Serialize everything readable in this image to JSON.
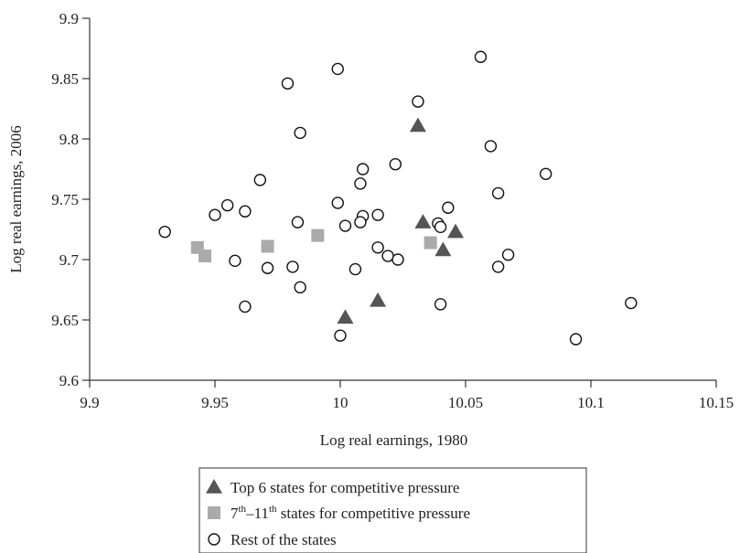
{
  "chart_data": {
    "type": "scatter",
    "title": "",
    "xlabel": "Log real earnings, 1980",
    "ylabel": "Log real earnings, 2006",
    "xlim": [
      9.9,
      10.15
    ],
    "ylim": [
      9.6,
      9.9
    ],
    "xticks": [
      "9.9",
      "9.95",
      "10",
      "10.05",
      "10.1",
      "10.15"
    ],
    "yticks": [
      "9.6",
      "9.65",
      "9.7",
      "9.75",
      "9.8",
      "9.85",
      "9.9"
    ],
    "grid": false,
    "legend_position": "bottom-center",
    "series": [
      {
        "name": "Top 6 states for competitive pressure",
        "marker": "triangle",
        "color": "#555555",
        "points": [
          {
            "x": 10.031,
            "y": 9.811
          },
          {
            "x": 10.033,
            "y": 9.731
          },
          {
            "x": 10.046,
            "y": 9.723
          },
          {
            "x": 10.041,
            "y": 9.708
          },
          {
            "x": 10.015,
            "y": 9.666
          },
          {
            "x": 10.002,
            "y": 9.652
          }
        ]
      },
      {
        "name_parts": [
          "7",
          "th",
          "–11",
          "th",
          " states for competitive pressure"
        ],
        "marker": "square",
        "color": "#aaaaaa",
        "points": [
          {
            "x": 9.943,
            "y": 9.71
          },
          {
            "x": 9.946,
            "y": 9.703
          },
          {
            "x": 9.971,
            "y": 9.711
          },
          {
            "x": 9.991,
            "y": 9.72
          },
          {
            "x": 10.036,
            "y": 9.714
          }
        ]
      },
      {
        "name": "Rest of the states",
        "marker": "circle-open",
        "color": "#111111",
        "points": [
          {
            "x": 9.93,
            "y": 9.723
          },
          {
            "x": 9.95,
            "y": 9.737
          },
          {
            "x": 9.955,
            "y": 9.745
          },
          {
            "x": 9.958,
            "y": 9.699
          },
          {
            "x": 9.962,
            "y": 9.74
          },
          {
            "x": 9.962,
            "y": 9.661
          },
          {
            "x": 9.968,
            "y": 9.766
          },
          {
            "x": 9.971,
            "y": 9.693
          },
          {
            "x": 9.979,
            "y": 9.846
          },
          {
            "x": 9.981,
            "y": 9.694
          },
          {
            "x": 9.983,
            "y": 9.731
          },
          {
            "x": 9.984,
            "y": 9.805
          },
          {
            "x": 9.984,
            "y": 9.677
          },
          {
            "x": 9.999,
            "y": 9.858
          },
          {
            "x": 9.999,
            "y": 9.747
          },
          {
            "x": 10.002,
            "y": 9.728
          },
          {
            "x": 10.0,
            "y": 9.637
          },
          {
            "x": 10.006,
            "y": 9.692
          },
          {
            "x": 10.009,
            "y": 9.775
          },
          {
            "x": 10.008,
            "y": 9.763
          },
          {
            "x": 10.009,
            "y": 9.736
          },
          {
            "x": 10.008,
            "y": 9.731
          },
          {
            "x": 10.015,
            "y": 9.737
          },
          {
            "x": 10.015,
            "y": 9.71
          },
          {
            "x": 10.019,
            "y": 9.703
          },
          {
            "x": 10.022,
            "y": 9.779
          },
          {
            "x": 10.023,
            "y": 9.7
          },
          {
            "x": 10.031,
            "y": 9.831
          },
          {
            "x": 10.039,
            "y": 9.73
          },
          {
            "x": 10.04,
            "y": 9.727
          },
          {
            "x": 10.043,
            "y": 9.743
          },
          {
            "x": 10.04,
            "y": 9.663
          },
          {
            "x": 10.056,
            "y": 9.868
          },
          {
            "x": 10.06,
            "y": 9.794
          },
          {
            "x": 10.063,
            "y": 9.755
          },
          {
            "x": 10.063,
            "y": 9.694
          },
          {
            "x": 10.067,
            "y": 9.704
          },
          {
            "x": 10.082,
            "y": 9.771
          },
          {
            "x": 10.094,
            "y": 9.634
          },
          {
            "x": 10.116,
            "y": 9.664
          }
        ]
      }
    ]
  }
}
